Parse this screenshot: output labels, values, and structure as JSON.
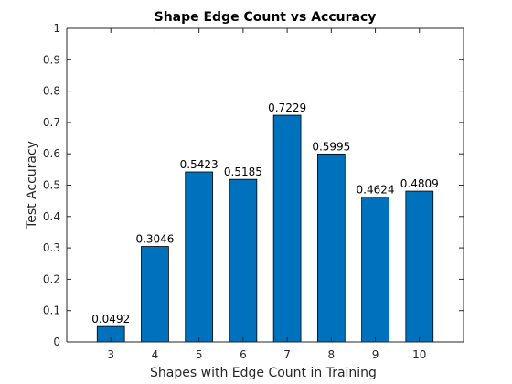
{
  "chart_data": {
    "type": "bar",
    "title": "Shape Edge Count vs Accuracy",
    "xlabel": "Shapes with Edge Count in Training",
    "ylabel": "Test Accuracy",
    "categories": [
      "3",
      "4",
      "5",
      "6",
      "7",
      "8",
      "9",
      "10"
    ],
    "values": [
      0.0492,
      0.3046,
      0.5423,
      0.5185,
      0.7229,
      0.5995,
      0.4624,
      0.4809
    ],
    "data_labels": [
      "0.0492",
      "0.3046",
      "0.5423",
      "0.5185",
      "0.7229",
      "0.5995",
      "0.4624",
      "0.4809"
    ],
    "ylim": [
      0,
      1
    ],
    "yticks": [
      0,
      0.1,
      0.2,
      0.3,
      0.4,
      0.5,
      0.6,
      0.7,
      0.8,
      0.9,
      1
    ],
    "ytick_labels": [
      "0",
      "0.1",
      "0.2",
      "0.3",
      "0.4",
      "0.5",
      "0.6",
      "0.7",
      "0.8",
      "0.9",
      "1"
    ],
    "bar_color": "#0072BD",
    "grid": false,
    "legend": false
  }
}
